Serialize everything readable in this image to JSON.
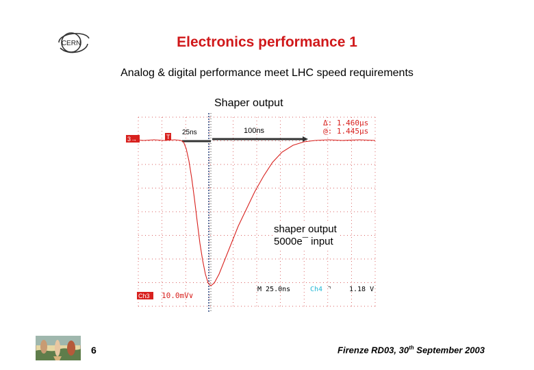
{
  "slide": {
    "title": "Electronics performance 1",
    "subtitle": "Analog & digital performance meet LHC speed requirements",
    "scope_title": "Shaper output",
    "logo_text": "CERN",
    "page_number": "6",
    "footer": {
      "pre": "Firenze RD03, 30",
      "sup": "th",
      "post": " September 2003"
    }
  },
  "scope": {
    "marker_25": "25ns",
    "marker_100": "100ns",
    "delta": "Δ: 1.460μs",
    "at": "@: 1.445μs",
    "ch_marker": "3→",
    "trigger_marker": "T",
    "ch_label": "Ch3",
    "ch_scale": "10.0mV∨",
    "timebase": "M 25.0ns",
    "trig_ch": "Ch4",
    "trig_level": "1.18 V",
    "annotation_line1": "shaper output",
    "annotation_line2": "5000e¯ input"
  },
  "colors": {
    "title": "#d0181a",
    "trace": "#d8211e",
    "grid": "#cc2a2a",
    "cursor": "#5b6f9b",
    "ch4": "#22b8d6"
  }
}
